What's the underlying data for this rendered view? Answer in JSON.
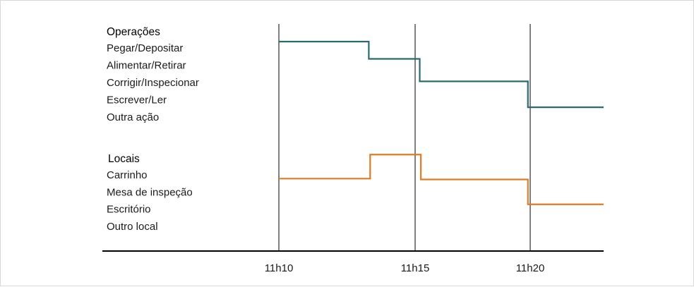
{
  "chart_data": {
    "type": "line",
    "step": true,
    "x_ticks": [
      "11h10",
      "11h15",
      "11h20"
    ],
    "x_tick_values": [
      10,
      15,
      20
    ],
    "xlim": [
      10,
      24
    ],
    "colors": {
      "operacoes": "#2b6b70",
      "locais": "#e07b23",
      "axis": "#000000"
    },
    "panels": [
      {
        "key": "operacoes",
        "title": "Operações",
        "categories": [
          "Pegar/Depositar",
          "Alimentar/Retirar",
          "Corrigir/Inspecionar",
          "Escrever/Ler",
          "Outra ação"
        ],
        "steps": [
          {
            "x_from": 10.0,
            "x_to": 13.3,
            "level": 0
          },
          {
            "x_from": 13.3,
            "x_to": 15.2,
            "level": 1
          },
          {
            "x_from": 15.2,
            "x_to": 19.9,
            "level": 2.3
          },
          {
            "x_from": 19.9,
            "x_to": 24.0,
            "level": 3.8
          }
        ]
      },
      {
        "key": "locais",
        "title": "Locais",
        "categories": [
          "Carrinho",
          "Mesa de inspeção",
          "Escritório",
          "Outro local"
        ],
        "steps": [
          {
            "x_from": 10.0,
            "x_to": 13.35,
            "level": 0.3
          },
          {
            "x_from": 13.35,
            "x_to": 15.25,
            "level": -1.1
          },
          {
            "x_from": 15.25,
            "x_to": 19.9,
            "level": 0.35
          },
          {
            "x_from": 19.9,
            "x_to": 24.0,
            "level": 1.8
          }
        ]
      }
    ]
  }
}
